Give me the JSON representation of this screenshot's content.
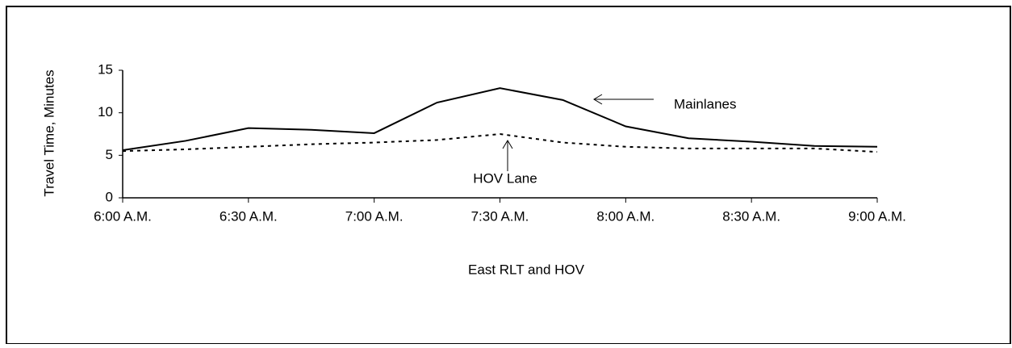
{
  "chart_data": {
    "type": "line",
    "x_label": "East RLT and HOV",
    "y_label": "Travel Time, Minutes",
    "categories": [
      "6:00 A.M.",
      null,
      "6:30 A.M.",
      null,
      "7:00 A.M.",
      null,
      "7:30 A.M.",
      null,
      "8:00 A.M.",
      null,
      "8:30 A.M.",
      null,
      "9:00 A.M."
    ],
    "series": [
      {
        "name": "Mainlanes",
        "color": "#000000",
        "style": "solid",
        "values": [
          5.6,
          6.7,
          8.2,
          8.0,
          7.6,
          11.2,
          12.9,
          11.5,
          8.4,
          7.0,
          6.6,
          6.1,
          6.0
        ]
      },
      {
        "name": "HOV Lane",
        "color": "#000000",
        "style": "dotted",
        "values": [
          5.5,
          5.7,
          6.0,
          6.3,
          6.5,
          6.8,
          7.5,
          6.5,
          6.0,
          5.8,
          5.8,
          5.8,
          5.4
        ]
      }
    ],
    "ylim": [
      0,
      15
    ],
    "yticks": [
      0,
      5,
      10,
      15
    ]
  }
}
